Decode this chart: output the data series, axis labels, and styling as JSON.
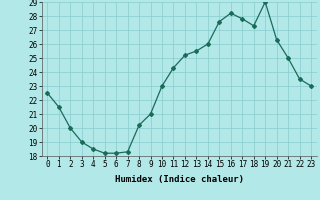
{
  "x": [
    0,
    1,
    2,
    3,
    4,
    5,
    6,
    7,
    8,
    9,
    10,
    11,
    12,
    13,
    14,
    15,
    16,
    17,
    18,
    19,
    20,
    21,
    22,
    23
  ],
  "y": [
    22.5,
    21.5,
    20.0,
    19.0,
    18.5,
    18.2,
    18.2,
    18.3,
    20.2,
    21.0,
    23.0,
    24.3,
    25.2,
    25.5,
    26.0,
    27.6,
    28.2,
    27.8,
    27.3,
    29.0,
    26.3,
    25.0,
    23.5,
    23.0
  ],
  "line_color": "#1a6b5a",
  "marker": "D",
  "marker_size": 2,
  "bg_color": "#b3e8e8",
  "grid_color": "#88cccc",
  "xlabel": "Humidex (Indice chaleur)",
  "ylim": [
    18,
    29
  ],
  "xlim": [
    -0.5,
    23.5
  ],
  "yticks": [
    18,
    19,
    20,
    21,
    22,
    23,
    24,
    25,
    26,
    27,
    28,
    29
  ],
  "xticks": [
    0,
    1,
    2,
    3,
    4,
    5,
    6,
    7,
    8,
    9,
    10,
    11,
    12,
    13,
    14,
    15,
    16,
    17,
    18,
    19,
    20,
    21,
    22,
    23
  ],
  "label_fontsize": 6.5,
  "tick_fontsize": 5.5
}
